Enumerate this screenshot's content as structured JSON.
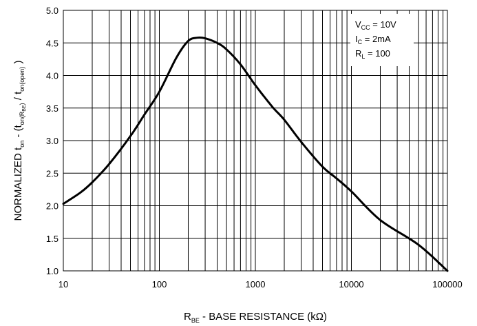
{
  "chart_data": {
    "type": "line",
    "x_scale": "log",
    "xlim": [
      10,
      100000
    ],
    "ylim": [
      1.0,
      5.0
    ],
    "grid": true,
    "x_ticks": [
      "10",
      "100",
      "1000",
      "10000",
      "100000"
    ],
    "y_ticks": [
      "1.0",
      "1.5",
      "2.0",
      "2.5",
      "3.0",
      "3.5",
      "4.0",
      "4.5",
      "5.0"
    ],
    "xlabel": {
      "main": "R",
      "sub": "BE",
      "rest": " - BASE RESISTANCE (k",
      "omega": "Ω",
      "close": ")"
    },
    "ylabel": {
      "p1": "NORMALIZED t",
      "s1": "on",
      "p2": " - (t",
      "s2": "on(R",
      "s2b": "BE",
      "s2c": ")",
      "p3": " / t",
      "s3": "on(open)",
      "p4": " )"
    },
    "annotation": [
      {
        "main": "V",
        "sub": "CC",
        "rest": " = 10V"
      },
      {
        "main": "I",
        "sub": "C",
        "rest": " = 2mA"
      },
      {
        "main": "R",
        "sub": "L",
        "rest": " = 100"
      }
    ],
    "series": [
      {
        "x": [
          10,
          15,
          20,
          30,
          50,
          70,
          100,
          150,
          200,
          250,
          300,
          400,
          500,
          700,
          1000,
          1500,
          2000,
          3000,
          5000,
          7000,
          10000,
          20000,
          50000,
          100000
        ],
        "y": [
          2.03,
          2.2,
          2.36,
          2.64,
          3.07,
          3.4,
          3.75,
          4.27,
          4.53,
          4.58,
          4.57,
          4.5,
          4.4,
          4.17,
          3.85,
          3.52,
          3.32,
          2.98,
          2.6,
          2.42,
          2.22,
          1.78,
          1.4,
          1.0
        ]
      }
    ]
  }
}
